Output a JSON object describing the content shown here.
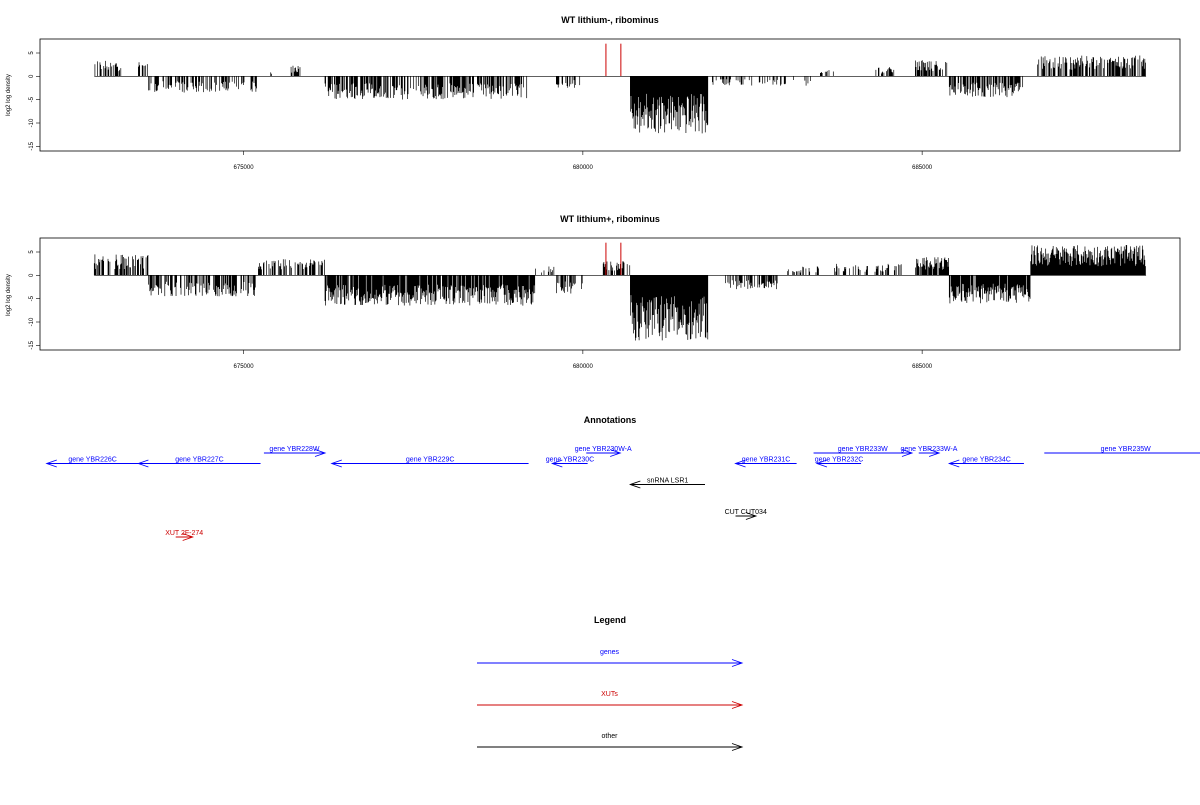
{
  "panels": [
    {
      "title": "WT lithium-, ribominus",
      "ylabel": "log2 log density",
      "yticks": [
        5,
        0,
        -5,
        -10,
        -15
      ],
      "ylim": [
        -16,
        8
      ],
      "xlim": [
        672000,
        688800
      ],
      "xticks": [
        675000,
        680000,
        685000
      ],
      "bar_color": "#000000",
      "spike_color": "#cc0000",
      "segments": [
        {
          "from": 672800,
          "to": 673200,
          "amp": 3.5,
          "density": 0.5
        },
        {
          "from": 673450,
          "to": 673600,
          "amp": 3.5,
          "density": 0.6
        },
        {
          "from": 673600,
          "to": 675200,
          "amp": -3.5,
          "density": 0.5
        },
        {
          "from": 675400,
          "to": 675420,
          "amp": 1.0,
          "density": 1
        },
        {
          "from": 675700,
          "to": 675850,
          "amp": 2.5,
          "density": 0.6
        },
        {
          "from": 676200,
          "to": 679200,
          "amp": -5.0,
          "density": 0.6
        },
        {
          "from": 679600,
          "to": 680000,
          "amp": -2.5,
          "density": 0.4
        },
        {
          "from": 680700,
          "to": 681850,
          "amp": -12.5,
          "density": 1
        },
        {
          "from": 681900,
          "to": 683400,
          "amp": -2.0,
          "density": 0.25
        },
        {
          "from": 683500,
          "to": 683700,
          "amp": 1.5,
          "density": 0.5
        },
        {
          "from": 684300,
          "to": 684600,
          "amp": 2.0,
          "density": 0.4
        },
        {
          "from": 684900,
          "to": 685400,
          "amp": 3.5,
          "density": 0.6
        },
        {
          "from": 685400,
          "to": 686500,
          "amp": -4.5,
          "density": 0.7
        },
        {
          "from": 686700,
          "to": 688300,
          "amp": 4.5,
          "density": 0.6
        }
      ],
      "spikes": [
        {
          "x": 680340,
          "y": 7
        },
        {
          "x": 680560,
          "y": 7
        }
      ]
    },
    {
      "title": "WT lithium+, ribominus",
      "ylabel": "log2 log density",
      "yticks": [
        5,
        0,
        -5,
        -10,
        -15
      ],
      "ylim": [
        -16,
        8
      ],
      "xlim": [
        672000,
        688800
      ],
      "xticks": [
        675000,
        680000,
        685000
      ],
      "bar_color": "#000000",
      "spike_color": "#cc0000",
      "segments": [
        {
          "from": 672800,
          "to": 673600,
          "amp": 4.5,
          "density": 0.6
        },
        {
          "from": 673600,
          "to": 675200,
          "amp": -4.5,
          "density": 0.6
        },
        {
          "from": 675200,
          "to": 676200,
          "amp": 3.5,
          "density": 0.5
        },
        {
          "from": 676200,
          "to": 679300,
          "amp": -6.5,
          "density": 0.9
        },
        {
          "from": 679300,
          "to": 679600,
          "amp": 2.0,
          "density": 0.4
        },
        {
          "from": 679600,
          "to": 680000,
          "amp": -4.0,
          "density": 0.5
        },
        {
          "from": 680300,
          "to": 680700,
          "amp": 3.0,
          "density": 0.6
        },
        {
          "from": 680700,
          "to": 681850,
          "amp": -14.0,
          "density": 1
        },
        {
          "from": 682100,
          "to": 682900,
          "amp": -3.0,
          "density": 0.5
        },
        {
          "from": 683000,
          "to": 683500,
          "amp": 2.0,
          "density": 0.3
        },
        {
          "from": 683700,
          "to": 684700,
          "amp": 2.5,
          "density": 0.4
        },
        {
          "from": 684900,
          "to": 685400,
          "amp": 4.0,
          "density": 0.8
        },
        {
          "from": 685400,
          "to": 686600,
          "amp": -6.0,
          "density": 0.9
        },
        {
          "from": 686600,
          "to": 688300,
          "amp": 6.5,
          "density": 1
        }
      ],
      "spikes": [
        {
          "x": 680340,
          "y": 7
        },
        {
          "x": 680560,
          "y": 7
        }
      ]
    }
  ],
  "annotations": {
    "title": "Annotations",
    "xlim": [
      672000,
      688800
    ],
    "colors": {
      "genes": "#0000ff",
      "XUTs": "#cc0000",
      "other": "#000000"
    },
    "features": [
      {
        "label": "gene YBR226C",
        "start": 673450,
        "end": 672100,
        "row": 1,
        "type": "genes"
      },
      {
        "label": "gene YBR227C",
        "start": 675250,
        "end": 673450,
        "row": 1,
        "type": "genes"
      },
      {
        "label": "gene YBR228W",
        "start": 675300,
        "end": 676200,
        "row": 0,
        "type": "genes"
      },
      {
        "label": "gene YBR229C",
        "start": 679200,
        "end": 676300,
        "row": 1,
        "type": "genes"
      },
      {
        "label": "gene YBR230C",
        "start": 680070,
        "end": 679550,
        "row": 1,
        "type": "genes"
      },
      {
        "label": "gene YBR230W-A",
        "start": 680050,
        "end": 680550,
        "row": 0,
        "type": "genes"
      },
      {
        "label": "gene YBR231C",
        "start": 683150,
        "end": 682250,
        "row": 1,
        "type": "genes"
      },
      {
        "label": "gene YBR232C",
        "start": 684100,
        "end": 683450,
        "row": 1,
        "type": "genes"
      },
      {
        "label": "gene YBR233W",
        "start": 683400,
        "end": 684850,
        "row": 0,
        "type": "genes"
      },
      {
        "label": "gene YBR233W-A",
        "start": 684950,
        "end": 685250,
        "row": 0,
        "type": "genes"
      },
      {
        "label": "gene YBR234C",
        "start": 686500,
        "end": 685400,
        "row": 1,
        "type": "genes"
      },
      {
        "label": "gene YBR235W",
        "start": 686800,
        "end": 689200,
        "row": 0,
        "type": "genes"
      },
      {
        "label": "snRNA LSR1",
        "start": 681800,
        "end": 680700,
        "row": 3,
        "type": "other"
      },
      {
        "label": "CUT CUT034",
        "start": 682250,
        "end": 682550,
        "row": 6,
        "type": "other"
      },
      {
        "label": "XUT 2F-274",
        "start": 674000,
        "end": 674250,
        "row": 8,
        "type": "XUTs"
      }
    ]
  },
  "legend": {
    "title": "Legend",
    "items": [
      {
        "label": "genes",
        "color": "#0000ff"
      },
      {
        "label": "XUTs",
        "color": "#cc0000"
      },
      {
        "label": "other",
        "color": "#000000"
      }
    ]
  }
}
